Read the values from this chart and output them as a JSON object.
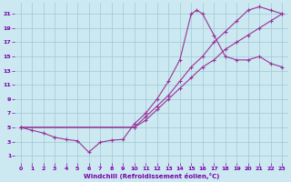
{
  "bg_color": "#cce8f0",
  "grid_color": "#a0c8d8",
  "line_color": "#993399",
  "marker_color": "#993399",
  "xlabel": "Windchill (Refroidissement éolien,°C)",
  "xlabel_color": "#7700aa",
  "tick_color": "#7700aa",
  "xlim": [
    -0.5,
    23.5
  ],
  "ylim": [
    0,
    22.5
  ],
  "xticks": [
    0,
    1,
    2,
    3,
    4,
    5,
    6,
    7,
    8,
    9,
    10,
    11,
    12,
    13,
    14,
    15,
    16,
    17,
    18,
    19,
    20,
    21,
    22,
    23
  ],
  "yticks": [
    1,
    3,
    5,
    7,
    9,
    11,
    13,
    15,
    17,
    19,
    21
  ],
  "curve1_x": [
    0,
    1,
    2,
    3,
    4,
    5,
    6,
    7,
    8,
    9,
    10,
    11,
    12,
    13,
    14,
    15,
    15.5,
    16,
    17,
    18,
    19,
    20,
    21,
    22,
    23
  ],
  "curve1_y": [
    5,
    4.6,
    4.2,
    3.6,
    3.3,
    3.1,
    1.5,
    2.9,
    3.2,
    3.3,
    5.5,
    7,
    9,
    11.5,
    14.5,
    21,
    21.5,
    21,
    18,
    15,
    14.5,
    14.5,
    15,
    14,
    13.5
  ],
  "curve2_x": [
    0,
    10,
    11,
    12,
    13,
    14,
    15,
    16,
    17,
    18,
    19,
    20,
    21,
    22,
    23
  ],
  "curve2_y": [
    5,
    5,
    6.5,
    8,
    9.5,
    11.5,
    13.5,
    15,
    17,
    18.5,
    20,
    21.5,
    22,
    21.5,
    21
  ],
  "curve3_x": [
    0,
    10,
    11,
    12,
    13,
    14,
    15,
    16,
    17,
    18,
    19,
    20,
    21,
    22,
    23
  ],
  "curve3_y": [
    5,
    5,
    6,
    7.5,
    9,
    10.5,
    12,
    13.5,
    14.5,
    16,
    17,
    18,
    19,
    20,
    21
  ]
}
